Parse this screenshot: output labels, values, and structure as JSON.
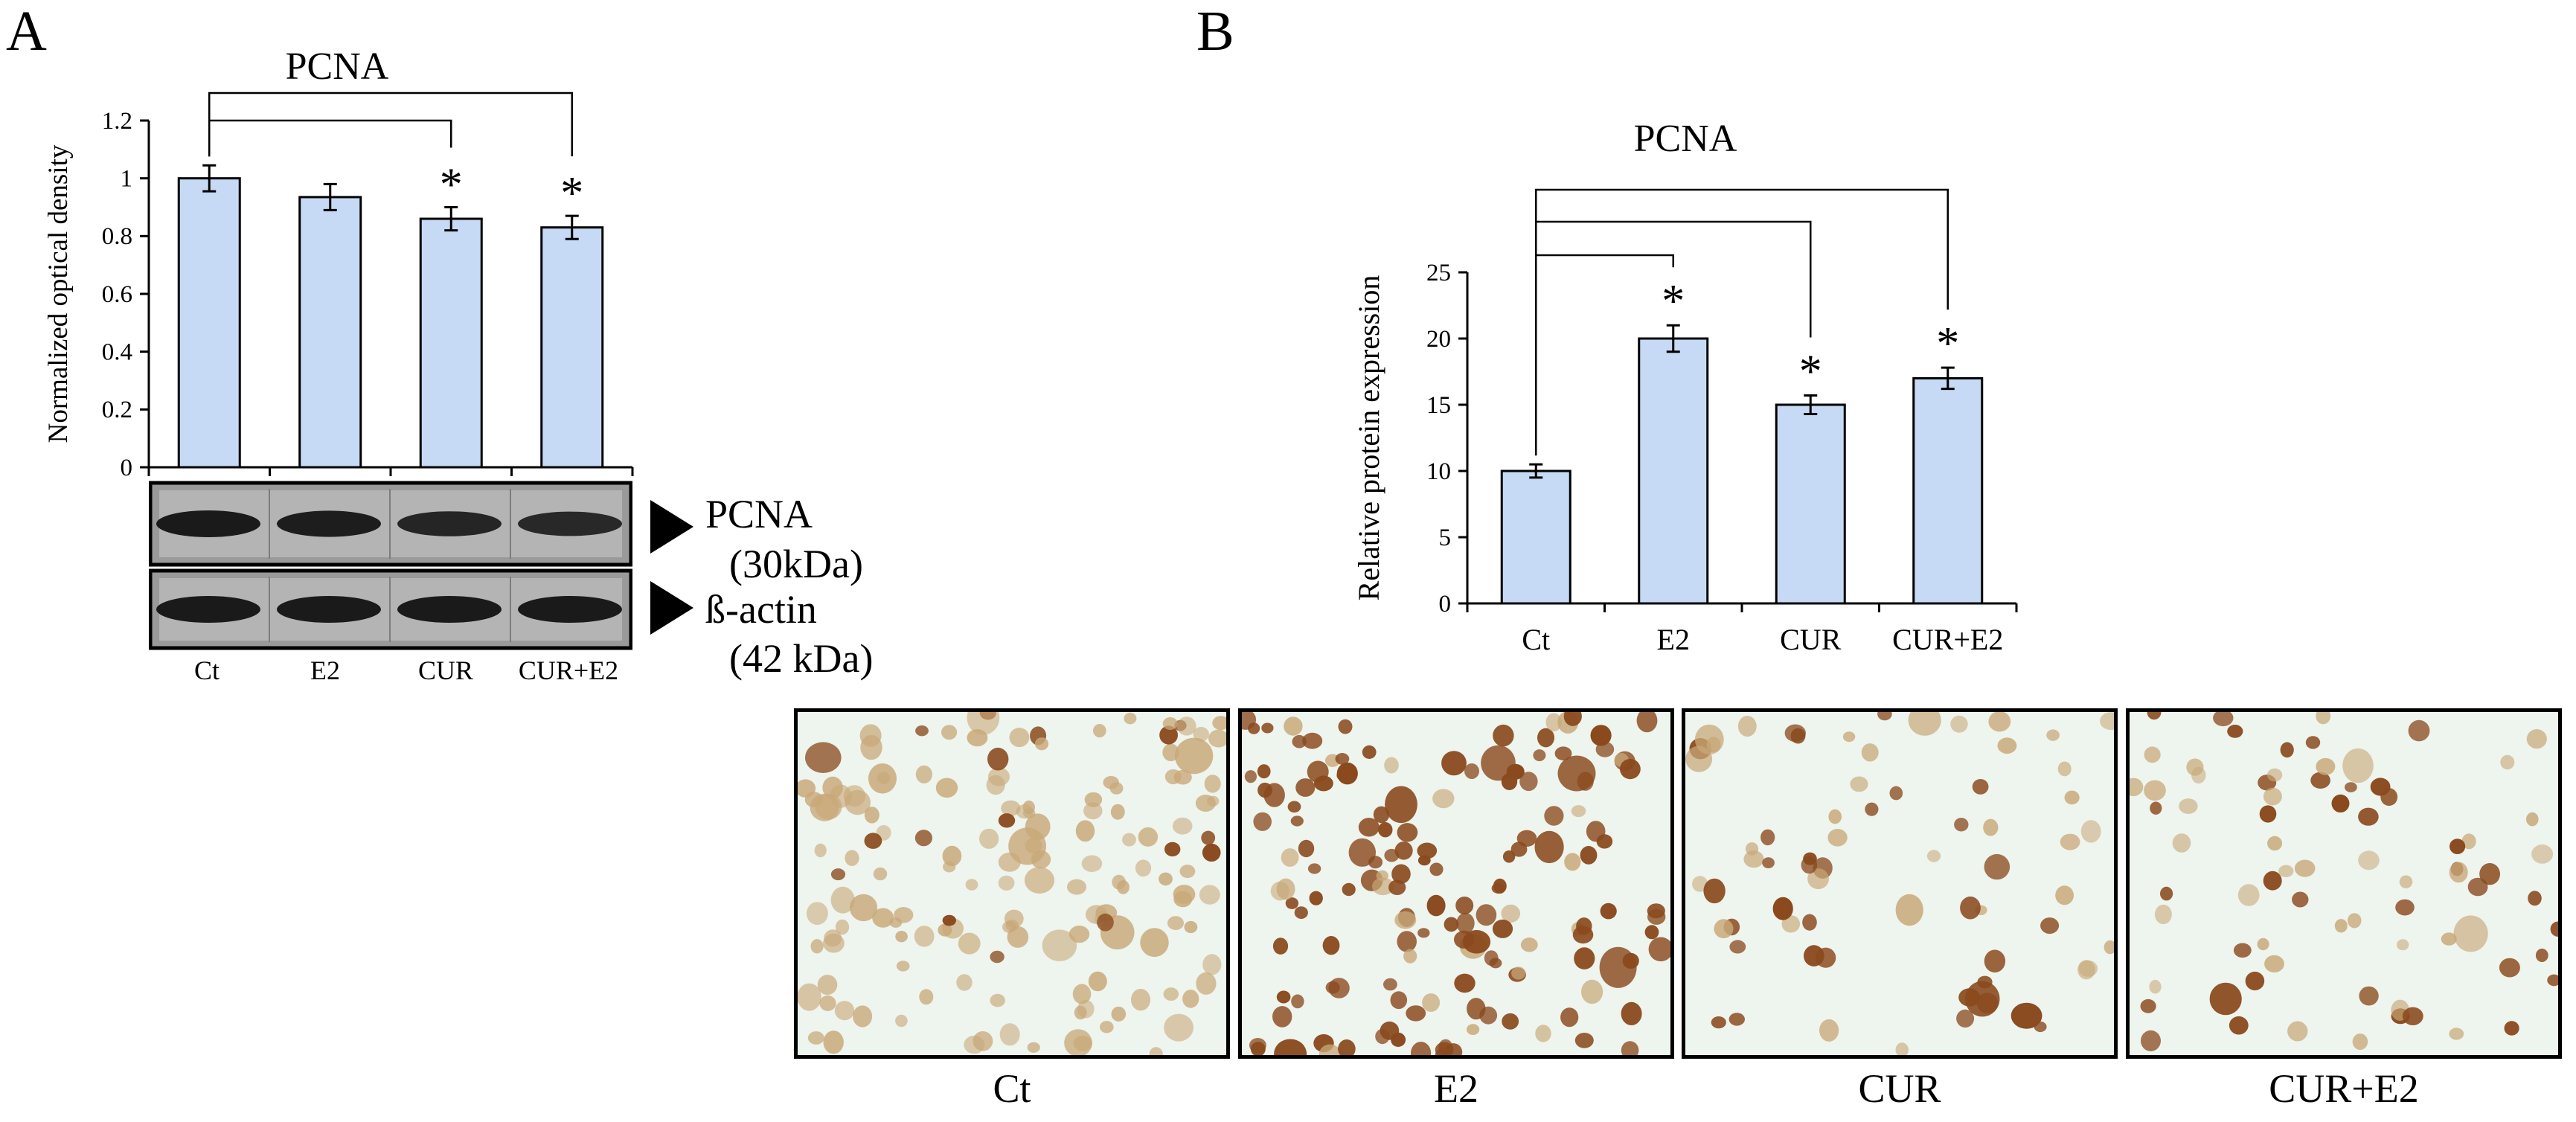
{
  "panels": {
    "a_letter": "A",
    "b_letter": "B"
  },
  "colors": {
    "bar_fill": "#c6daf5",
    "bar_stroke": "#000000",
    "axis": "#000000",
    "stain_brown": "#8a4a1e",
    "stain_light": "#c8a878",
    "micro_bg": "#eef4ee"
  },
  "chart_data": [
    {
      "id": "A",
      "type": "bar",
      "title": "PCNA",
      "ylabel": "Normalized optical density",
      "xlabel": "",
      "categories": [
        "Ct",
        "E2",
        "CUR",
        "CUR+E2"
      ],
      "values": [
        1.0,
        0.935,
        0.86,
        0.83
      ],
      "errors": [
        0.045,
        0.045,
        0.04,
        0.04
      ],
      "ylim": [
        0,
        1.2
      ],
      "yticks": [
        "0",
        "0.2",
        "0.4",
        "0.6",
        "0.8",
        "1",
        "1.2"
      ],
      "significance": [
        "",
        "",
        "*",
        "*"
      ],
      "comparisons": [
        {
          "from": "Ct",
          "to": "CUR"
        },
        {
          "from": "Ct",
          "to": "CUR+E2"
        }
      ],
      "grid": false
    },
    {
      "id": "B",
      "type": "bar",
      "title": "PCNA",
      "ylabel": "Relative protein expression",
      "xlabel": "",
      "categories": [
        "Ct",
        "E2",
        "CUR",
        "CUR+E2"
      ],
      "values": [
        10,
        20,
        15,
        17
      ],
      "errors": [
        0.5,
        1.0,
        0.7,
        0.8
      ],
      "ylim": [
        0,
        25
      ],
      "yticks": [
        "0",
        "5",
        "10",
        "15",
        "20",
        "25"
      ],
      "significance": [
        "",
        "*",
        "*",
        "*"
      ],
      "comparisons": [
        {
          "from": "Ct",
          "to": "E2"
        },
        {
          "from": "Ct",
          "to": "CUR"
        },
        {
          "from": "Ct",
          "to": "CUR+E2"
        }
      ],
      "grid": false
    }
  ],
  "blot": {
    "lanes": [
      "Ct",
      "E2",
      "CUR",
      "CUR+E2"
    ],
    "pcna_label": "PCNA",
    "pcna_kda": "(30kDa)",
    "actin_label": "ß-actin",
    "actin_kda": "(42 kDa)",
    "pcna_band_intensity": [
      1.0,
      0.95,
      0.85,
      0.8
    ],
    "actin_band_intensity": [
      1.0,
      1.0,
      1.0,
      1.0
    ]
  },
  "micrographs": {
    "labels": [
      "Ct",
      "E2",
      "CUR",
      "CUR+E2"
    ],
    "positive_fraction": [
      0.1,
      0.85,
      0.5,
      0.55
    ],
    "cell_density": [
      1.0,
      1.0,
      0.45,
      0.5
    ]
  }
}
